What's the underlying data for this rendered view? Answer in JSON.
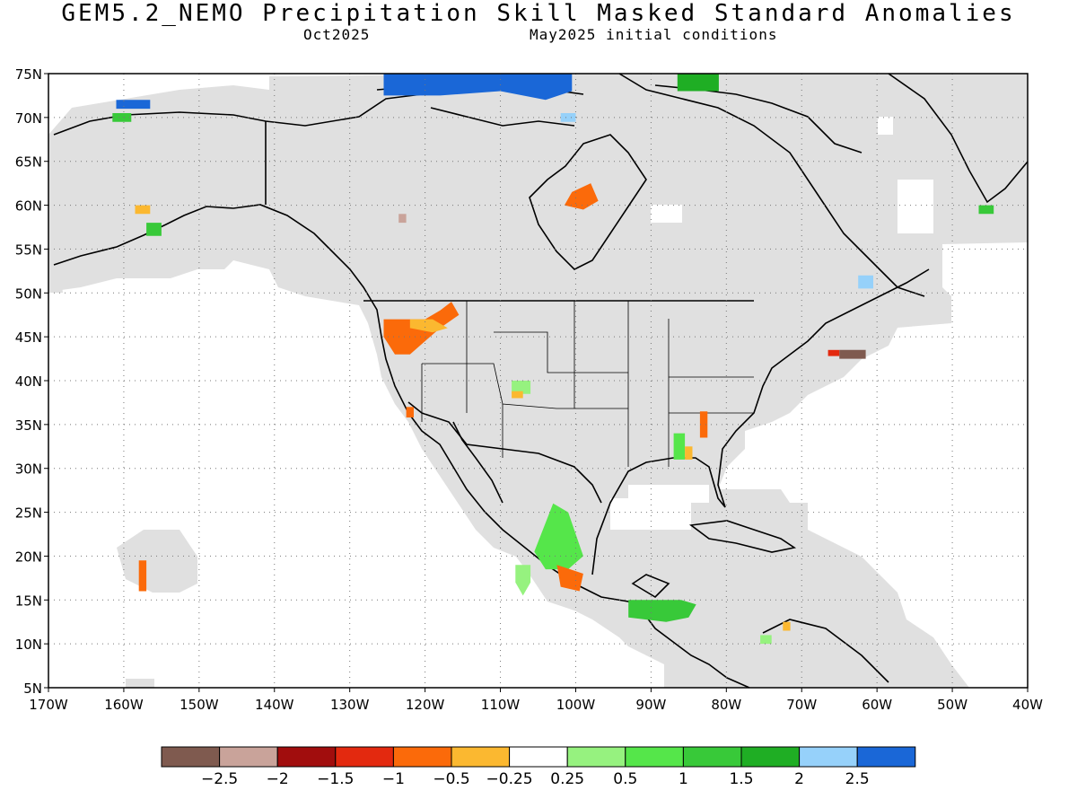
{
  "title": "GEM5.2_NEMO Precipitation Skill Masked Standard Anomalies",
  "valid_month": "Oct2025",
  "init_conditions": "May2025 initial conditions",
  "map": {
    "lon_range": [
      -170,
      -40
    ],
    "lat_range": [
      5,
      75
    ],
    "lon_ticks": [
      "170W",
      "160W",
      "150W",
      "140W",
      "130W",
      "120W",
      "110W",
      "100W",
      "90W",
      "80W",
      "70W",
      "60W",
      "50W",
      "40W"
    ],
    "lat_ticks": [
      "5N",
      "10N",
      "15N",
      "20N",
      "25N",
      "30N",
      "35N",
      "40N",
      "45N",
      "50N",
      "55N",
      "60N",
      "65N",
      "70N",
      "75N"
    ],
    "mask_color": "#e0e0e0",
    "coast_color": "#000000",
    "gridlines": "dotted"
  },
  "colorbar": {
    "colors": [
      "#7f5a4f",
      "#c9a39a",
      "#a10d0d",
      "#e3290f",
      "#fb6a0a",
      "#fbb830",
      "#ffffff",
      "#96f27f",
      "#55e64a",
      "#38c939",
      "#1fae24",
      "#96d1fa",
      "#1a67d7"
    ],
    "labels": [
      "−2.5",
      "−2",
      "−1.5",
      "−1",
      "−0.5",
      "−0.25",
      "0.25",
      "0.5",
      "1",
      "1.5",
      "2",
      "2.5"
    ]
  },
  "legend_colors": {
    "dark_brown": "#7f5a4f",
    "light_brown": "#c9a39a",
    "dark_red": "#a10d0d",
    "red": "#e3290f",
    "orange": "#fb6a0a",
    "light_orange": "#fbb830",
    "light_green": "#96f27f",
    "green": "#55e64a",
    "mid_green": "#38c939",
    "dark_green": "#1fae24",
    "light_blue": "#96d1fa",
    "blue": "#1a67d7"
  }
}
